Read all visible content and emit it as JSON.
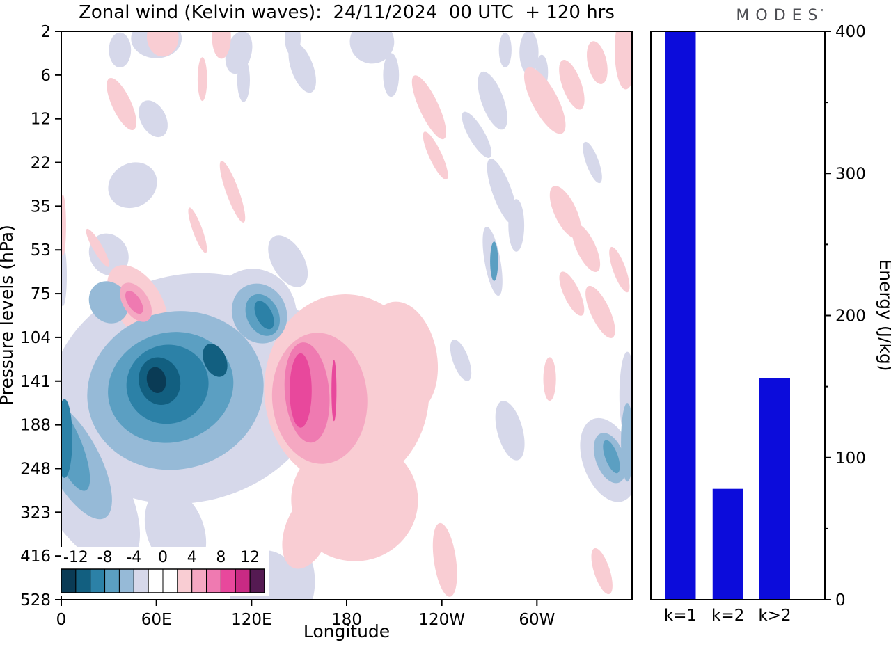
{
  "title": "Zonal wind (Kelvin waves):  24/11/2024  00 UTC  + 120 hrs",
  "logo": {
    "text": "MODES",
    "mark": "°"
  },
  "chart_data": [
    {
      "type": "contour",
      "title": "Zonal wind (Kelvin waves):  24/11/2024  00 UTC  + 120 hrs",
      "xlabel": "Longitude",
      "ylabel": "Pressure levels (hPa)",
      "x_ticks": [
        {
          "label": "0",
          "lon": 0
        },
        {
          "label": "60E",
          "lon": 60
        },
        {
          "label": "120E",
          "lon": 120
        },
        {
          "label": "180",
          "lon": 180
        },
        {
          "label": "120W",
          "lon": 240
        },
        {
          "label": "60W",
          "lon": 300
        }
      ],
      "xlim_deg": [
        0,
        360
      ],
      "y_ticks_hpa": [
        2,
        6,
        12,
        22,
        35,
        53,
        75,
        104,
        141,
        188,
        248,
        323,
        416,
        528
      ],
      "colorbar": {
        "tick_labels": [
          "-12",
          "-8",
          "-4",
          "0",
          "4",
          "8",
          "12"
        ],
        "tick_values": [
          -12,
          -8,
          -4,
          0,
          4,
          8,
          12
        ],
        "range": [
          -14,
          14
        ],
        "colors": [
          "#0a3b55",
          "#125f80",
          "#2c81a7",
          "#5b9fc2",
          "#96bad7",
          "#d6d8ea",
          "#ffffff",
          "#ffffff",
          "#f9cdd3",
          "#f5a8c2",
          "#ef7ab1",
          "#e8489c",
          "#c92a84",
          "#551a52"
        ]
      },
      "palette": {
        "b1": "#d6d8ea",
        "b2": "#96bad7",
        "b3": "#5b9fc2",
        "b4": "#2c81a7",
        "b5": "#125f80",
        "b6": "#0a3b55",
        "p1": "#f9cdd3",
        "p2": "#f5a8c2",
        "p3": "#ef7ab1",
        "p4": "#e8489c"
      },
      "feature_format": [
        "level_key",
        "lon_deg",
        "pressure_hPa",
        "rx_deg",
        "ry_levels",
        "rotation_deg"
      ],
      "features": [
        [
          "b1",
          80,
          148,
          88,
          2.6,
          -14
        ],
        [
          "b1",
          14,
          280,
          26,
          2.0,
          -30
        ],
        [
          "b1",
          122,
          86,
          26,
          1.0,
          -26
        ],
        [
          "b1",
          143,
          58,
          10,
          0.65,
          -30
        ],
        [
          "b1",
          72,
          360,
          18,
          1.0,
          -20
        ],
        [
          "b1",
          60,
          2.4,
          16,
          0.45,
          0
        ],
        [
          "b1",
          37,
          3.2,
          7,
          0.4,
          0
        ],
        [
          "b1",
          112,
          3.4,
          8,
          0.5,
          15
        ],
        [
          "b1",
          115,
          6.5,
          4,
          0.5,
          0
        ],
        [
          "b1",
          146,
          2.4,
          5,
          0.4,
          0
        ],
        [
          "b1",
          152,
          5,
          7,
          0.6,
          -20
        ],
        [
          "b1",
          196,
          2.6,
          14,
          0.5,
          8
        ],
        [
          "b1",
          208,
          6,
          5,
          0.5,
          0
        ],
        [
          "b1",
          272,
          9,
          7,
          0.7,
          -20
        ],
        [
          "b1",
          262,
          15,
          5,
          0.6,
          -30
        ],
        [
          "b1",
          278,
          30,
          6,
          0.8,
          -20
        ],
        [
          "b1",
          287,
          42,
          5,
          0.6,
          0
        ],
        [
          "b1",
          272,
          58,
          5,
          0.8,
          -10
        ],
        [
          "b1",
          283,
          195,
          8,
          0.7,
          -15
        ],
        [
          "b1",
          345,
          235,
          16,
          1.0,
          -20
        ],
        [
          "b1",
          128,
          500,
          22,
          0.9,
          4
        ],
        [
          "b1",
          152,
          478,
          8,
          0.7,
          0
        ],
        [
          "b1",
          252,
          122,
          5,
          0.5,
          -20
        ],
        [
          "b1",
          295,
          3.4,
          6,
          0.5,
          0
        ],
        [
          "b1",
          303,
          5.6,
          4,
          0.4,
          0
        ],
        [
          "b1",
          335,
          22,
          4,
          0.5,
          -20
        ],
        [
          "b1",
          280,
          3.2,
          4,
          0.4,
          0
        ],
        [
          "b1",
          45,
          28,
          16,
          0.5,
          -32
        ],
        [
          "b1",
          30,
          55,
          12,
          0.5,
          -32
        ],
        [
          "b1",
          58,
          12,
          8,
          0.45,
          -28
        ],
        [
          "b1",
          1,
          65,
          2.5,
          0.7,
          0
        ],
        [
          "b1",
          357,
          155,
          5,
          1.0,
          0
        ],
        [
          "p1",
          180,
          150,
          52,
          2.2,
          -3
        ],
        [
          "p1",
          185,
          300,
          40,
          1.4,
          5
        ],
        [
          "p1",
          215,
          120,
          22,
          1.3,
          -10
        ],
        [
          "p1",
          155,
          360,
          14,
          0.9,
          20
        ],
        [
          "p1",
          48,
          80,
          15,
          0.95,
          -33
        ],
        [
          "p1",
          64,
          2.3,
          10,
          0.45,
          0
        ],
        [
          "p1",
          101,
          2.3,
          6,
          0.5,
          0
        ],
        [
          "p1",
          38,
          9.5,
          6,
          0.65,
          -25
        ],
        [
          "p1",
          89,
          6.4,
          3,
          0.5,
          0
        ],
        [
          "p1",
          108,
          30,
          4,
          0.75,
          -20
        ],
        [
          "p1",
          86,
          44,
          3,
          0.55,
          -20
        ],
        [
          "p1",
          232,
          10,
          6,
          0.8,
          -25
        ],
        [
          "p1",
          236,
          20,
          4,
          0.6,
          -25
        ],
        [
          "p1",
          305,
          9,
          8,
          0.85,
          -28
        ],
        [
          "p1",
          322,
          7,
          6,
          0.6,
          -20
        ],
        [
          "p1",
          338,
          4.4,
          6,
          0.5,
          -12
        ],
        [
          "p1",
          356,
          3.2,
          7,
          0.9,
          0
        ],
        [
          "p1",
          318,
          37,
          7,
          0.65,
          -25
        ],
        [
          "p1",
          331,
          52,
          6,
          0.6,
          -25
        ],
        [
          "p1",
          322,
          75,
          5,
          0.55,
          -25
        ],
        [
          "p1",
          340,
          86,
          6,
          0.65,
          -25
        ],
        [
          "p1",
          352,
          62,
          4,
          0.55,
          -20
        ],
        [
          "p1",
          308,
          139,
          4,
          0.5,
          0
        ],
        [
          "p1",
          242,
          425,
          7,
          0.85,
          -8
        ],
        [
          "p1",
          341,
          452,
          5,
          0.55,
          -18
        ],
        [
          "p1",
          1,
          42,
          2,
          0.7,
          0
        ],
        [
          "p1",
          23,
          52,
          3,
          0.5,
          -30
        ],
        [
          "b2",
          72,
          150,
          56,
          1.8,
          -15
        ],
        [
          "b2",
          8,
          235,
          16,
          1.5,
          -28
        ],
        [
          "b2",
          125,
          87,
          17,
          0.7,
          -26
        ],
        [
          "b2",
          30,
          80,
          12,
          0.5,
          -33
        ],
        [
          "b2",
          346,
          232,
          9,
          0.6,
          -20
        ],
        [
          "b2",
          357,
          210,
          4,
          0.9,
          0
        ],
        [
          "p2",
          163,
          158,
          30,
          1.5,
          -4
        ],
        [
          "p2",
          47,
          80,
          8,
          0.5,
          -33
        ],
        [
          "b3",
          69,
          147,
          40,
          1.25,
          -17
        ],
        [
          "b3",
          4,
          215,
          9,
          1.1,
          -22
        ],
        [
          "b3",
          127,
          88,
          10,
          0.5,
          -26
        ],
        [
          "b3",
          273,
          58,
          2.5,
          0.45,
          0
        ],
        [
          "b3",
          347,
          230,
          4,
          0.4,
          -20
        ],
        [
          "p3",
          155,
          152,
          14,
          1.15,
          -5
        ],
        [
          "p3",
          46,
          80,
          4,
          0.3,
          -33
        ],
        [
          "b4",
          67,
          144,
          26,
          0.9,
          -18
        ],
        [
          "b4",
          2,
          205,
          5,
          0.9,
          0
        ],
        [
          "b4",
          128,
          88,
          5,
          0.35,
          -26
        ],
        [
          "p4",
          151,
          150,
          7,
          0.85,
          0
        ],
        [
          "p4",
          172,
          150,
          1.6,
          0.7,
          0
        ],
        [
          "b5",
          62,
          141,
          13,
          0.55,
          -16
        ],
        [
          "b5",
          97,
          122,
          7,
          0.4,
          -24
        ],
        [
          "b6",
          60,
          140,
          6,
          0.3,
          -12
        ]
      ]
    },
    {
      "type": "bar",
      "categories": [
        "k=1",
        "k=2",
        "k>2"
      ],
      "values": [
        400,
        78,
        156
      ],
      "ylabel": "Energy (J/kg)",
      "ylim": [
        0,
        400
      ],
      "yticks": [
        0,
        100,
        200,
        300,
        400
      ],
      "ytick_labels": [
        "0",
        "100",
        "200",
        "300",
        "400"
      ],
      "minor_tick_step": 50,
      "bar_color": "#0c0cdb"
    }
  ]
}
